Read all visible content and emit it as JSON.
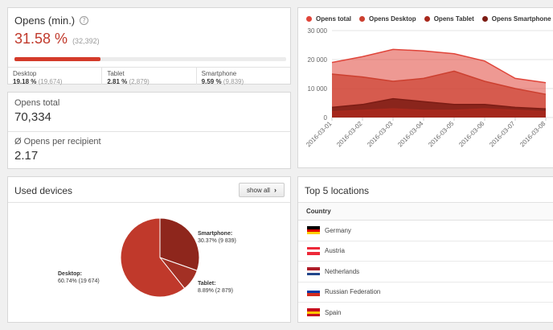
{
  "opens": {
    "title": "Opens (min.)",
    "help_icon": "question-circle-icon",
    "rate": "31.58 %",
    "count": "(32,392)",
    "progress_percent": 31.58,
    "breakdown": [
      {
        "label": "Desktop",
        "pct": "19.18 %",
        "count": "(19,674)"
      },
      {
        "label": "Tablet",
        "pct": "2.81 %",
        "count": "(2,879)"
      },
      {
        "label": "Smartphone",
        "pct": "9.59 %",
        "count": "(9,839)"
      }
    ]
  },
  "totals": {
    "opens_total_label": "Opens total",
    "opens_total_value": "70,334",
    "per_recipient_label": "Ø Opens per recipient",
    "per_recipient_value": "2.17"
  },
  "chart_data": [
    {
      "type": "area",
      "title": "",
      "xlabel": "",
      "ylabel": "",
      "x": [
        "2016-03-01",
        "2016-03-02",
        "2016-03-03",
        "2016-03-04",
        "2016-03-05",
        "2016-03-06",
        "2016-03-07",
        "2016-03-08"
      ],
      "ylim": [
        0,
        30000
      ],
      "yticks": [
        "0",
        "10 000",
        "20 000",
        "30 000"
      ],
      "grid": true,
      "legend_position": "top",
      "series": [
        {
          "name": "Opens total",
          "color": "#e0453a",
          "values": [
            19000,
            21000,
            23500,
            23000,
            22000,
            19500,
            13500,
            12000
          ]
        },
        {
          "name": "Opens Desktop",
          "color": "#cc4030",
          "values": [
            15000,
            14000,
            12500,
            13500,
            16000,
            12500,
            10000,
            8000
          ]
        },
        {
          "name": "Opens Tablet",
          "color": "#a8281c",
          "values": [
            2000,
            2500,
            3000,
            2500,
            2500,
            3000,
            2500,
            2000
          ]
        },
        {
          "name": "Opens Smartphone",
          "color": "#7c1c14",
          "values": [
            3500,
            4500,
            6500,
            5500,
            4500,
            4500,
            3500,
            3000
          ]
        }
      ]
    },
    {
      "type": "pie",
      "title": "",
      "slices": [
        {
          "name": "Desktop",
          "value": 19674,
          "percent": 60.74,
          "color": "#c0392b",
          "label_name": "Desktop:",
          "label_value": "60.74% (19 674)"
        },
        {
          "name": "Tablet",
          "value": 2879,
          "percent": 8.89,
          "color": "#a33024",
          "label_name": "Tablet:",
          "label_value": "8.89% (2 879)"
        },
        {
          "name": "Smartphone",
          "value": 9839,
          "percent": 30.37,
          "color": "#8e261c",
          "label_name": "Smartphone:",
          "label_value": "30.37% (9 839)"
        }
      ]
    }
  ],
  "devices": {
    "title": "Used devices",
    "show_all_label": "show all",
    "show_all_icon": "chevron-right-icon"
  },
  "locations": {
    "title": "Top 5 locations",
    "column_header": "Country",
    "rows": [
      {
        "name": "Germany",
        "flag_colors": [
          "#000000",
          "#dd0000",
          "#ffce00"
        ]
      },
      {
        "name": "Austria",
        "flag_colors": [
          "#ed2939",
          "#ffffff",
          "#ed2939"
        ]
      },
      {
        "name": "Netherlands",
        "flag_colors": [
          "#ae1c28",
          "#ffffff",
          "#21468b"
        ]
      },
      {
        "name": "Russian Federation",
        "flag_colors": [
          "#ffffff",
          "#0039a6",
          "#d52b1e"
        ]
      },
      {
        "name": "Spain",
        "flag_colors": [
          "#c60b1e",
          "#ffc400",
          "#c60b1e"
        ]
      }
    ]
  }
}
